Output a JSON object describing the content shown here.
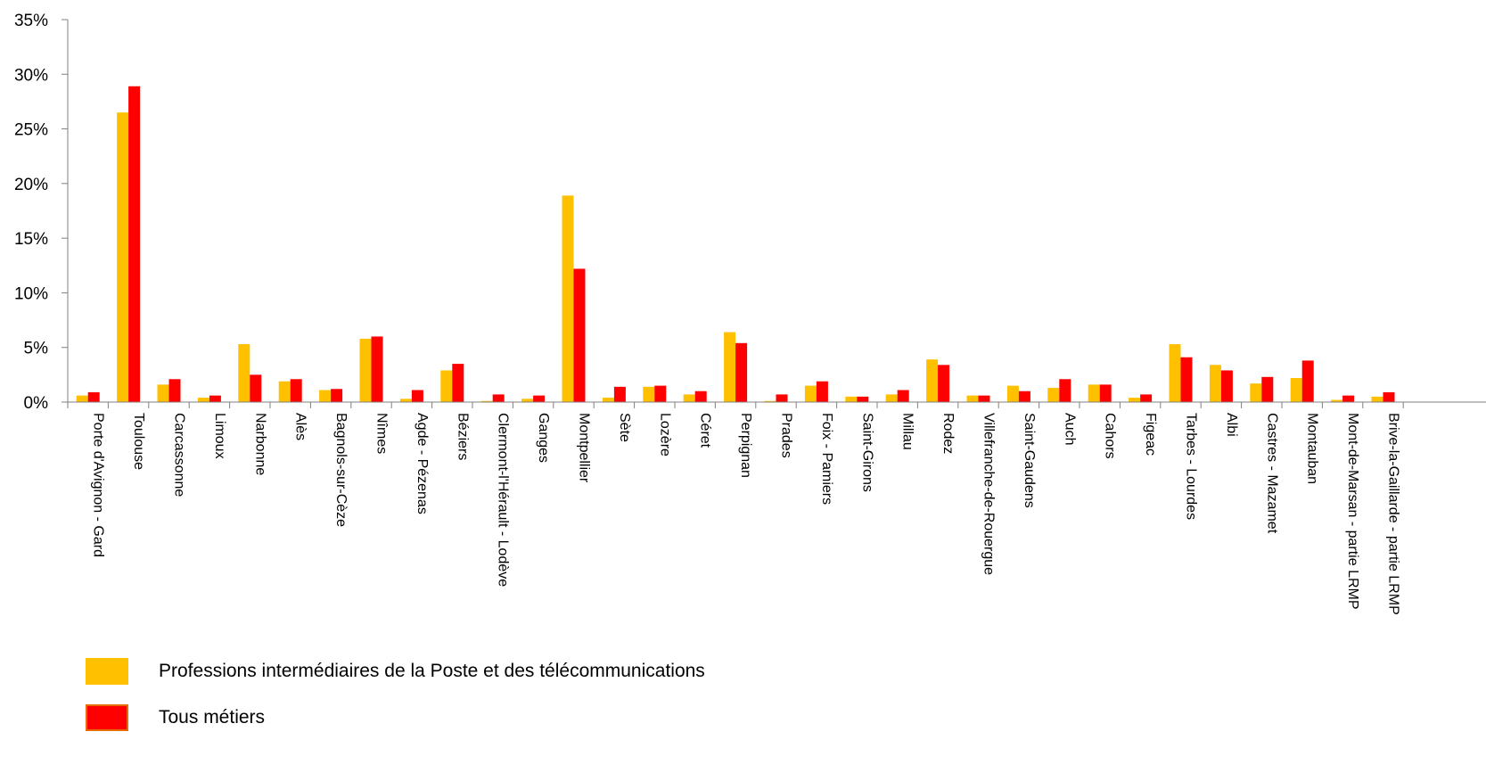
{
  "chart_data": {
    "type": "bar",
    "title": "",
    "xlabel": "",
    "ylabel": "",
    "ylim": [
      0,
      35
    ],
    "y_ticks": [
      "0%",
      "5%",
      "10%",
      "15%",
      "20%",
      "25%",
      "30%",
      "35%"
    ],
    "grid": false,
    "legend_position": "bottom-left",
    "categories": [
      "Porte d'Avignon - Gard",
      "Toulouse",
      "Carcassonne",
      "Limoux",
      "Narbonne",
      "Alès",
      "Bagnols-sur-Cèze",
      "Nîmes",
      "Agde - Pézenas",
      "Béziers",
      "Clermont-l'Hérault - Lodève",
      "Ganges",
      "Montpellier",
      "Sète",
      "Lozère",
      "Céret",
      "Perpignan",
      "Prades",
      "Foix - Pamiers",
      "Saint-Girons",
      "Millau",
      "Rodez",
      "Villefranche-de-Rouergue",
      "Saint-Gaudens",
      "Auch",
      "Cahors",
      "Figeac",
      "Tarbes - Lourdes",
      "Albi",
      "Castres - Mazamet",
      "Montauban",
      "Mont-de-Marsan - partie LRMP",
      "Brive-la-Gaillarde - partie LRMP"
    ],
    "series": [
      {
        "name": "Professions intermédiaires de la Poste et des télécommunications",
        "color": "#FFC000",
        "values": [
          0.6,
          26.5,
          1.6,
          0.4,
          5.3,
          1.9,
          1.1,
          5.8,
          0.3,
          2.9,
          0.1,
          0.3,
          18.9,
          0.4,
          1.4,
          0.7,
          6.4,
          0.1,
          1.5,
          0.5,
          0.7,
          3.9,
          0.6,
          1.5,
          1.3,
          1.6,
          0.4,
          5.3,
          3.4,
          1.7,
          2.2,
          0.2,
          0.5
        ]
      },
      {
        "name": "Tous métiers",
        "color": "#FF0000",
        "values": [
          0.9,
          28.9,
          2.1,
          0.6,
          2.5,
          2.1,
          1.2,
          6.0,
          1.1,
          3.5,
          0.7,
          0.6,
          12.2,
          1.4,
          1.5,
          1.0,
          5.4,
          0.7,
          1.9,
          0.5,
          1.1,
          3.4,
          0.6,
          1.0,
          2.1,
          1.6,
          0.7,
          4.1,
          2.9,
          2.3,
          3.8,
          0.6,
          0.9
        ]
      }
    ]
  }
}
